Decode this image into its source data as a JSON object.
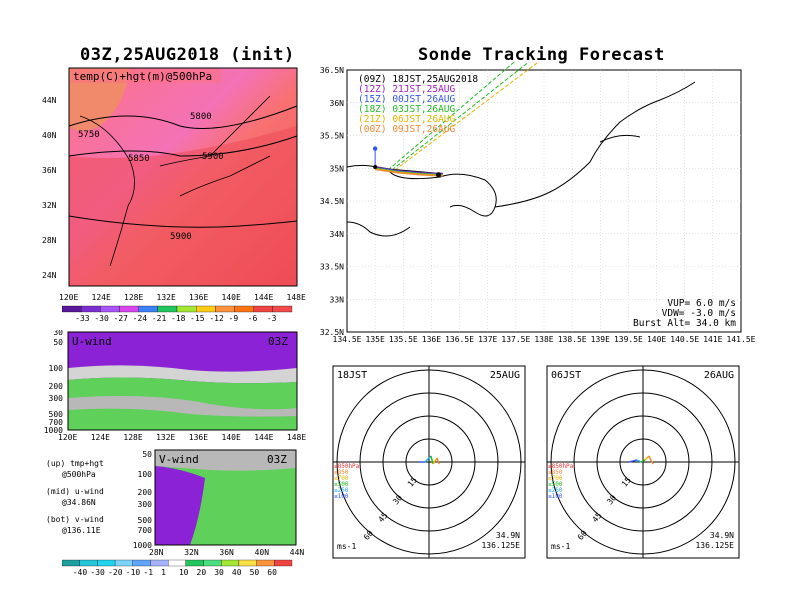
{
  "left_map": {
    "title": "03Z,25AUG2018 (init)",
    "inset_label": "temp(C)+hgt(m)@500hPa",
    "lat_labels": [
      "44N",
      "40N",
      "36N",
      "32N",
      "28N",
      "24N"
    ],
    "lon_labels": [
      "120E",
      "124E",
      "128E",
      "132E",
      "136E",
      "140E",
      "144E",
      "148E"
    ],
    "contours": [
      "5750",
      "5800",
      "5850",
      "5900",
      "5900"
    ],
    "colorbar_labels": [
      "-33",
      "-30",
      "-27",
      "-24",
      "-21",
      "-18",
      "-15",
      "-12",
      "-9",
      "-6",
      "-3"
    ],
    "colorbar_colors": [
      "#5a189a",
      "#7b2fd0",
      "#a855f7",
      "#d946ef",
      "#3b82f6",
      "#22c55e",
      "#a3e635",
      "#facc15",
      "#fb923c",
      "#f97316",
      "#ef4444",
      "#f04a4a"
    ]
  },
  "uwind": {
    "label": "U-wind",
    "time": "03Z",
    "lev_labels": [
      "30",
      "50",
      "100",
      "200",
      "300",
      "500",
      "700",
      "1000"
    ],
    "lon_labels": [
      "120E",
      "124E",
      "128E",
      "132E",
      "136E",
      "140E",
      "144E",
      "148E"
    ]
  },
  "vwind": {
    "label": "V-wind",
    "time": "03Z",
    "lev_labels": [
      "50",
      "100",
      "200",
      "300",
      "500",
      "700",
      "1000"
    ],
    "lat_labels": [
      "28N",
      "32N",
      "36N",
      "40N",
      "44N"
    ]
  },
  "legend_notes": [
    {
      "a": "(up) tmp+hgt",
      "b": "@500hPa"
    },
    {
      "a": "(mid) u-wind",
      "b": "@34.86N"
    },
    {
      "a": "(bot) v-wind",
      "b": "@136.11E"
    }
  ],
  "wind_colorbar": {
    "labels": [
      "-40",
      "-30",
      "-20",
      "-10",
      "-1",
      "1",
      "10",
      "20",
      "30",
      "40",
      "50",
      "60"
    ],
    "colors": [
      "#1e9ea0",
      "#26c6da",
      "#22d3ee",
      "#7dd3fc",
      "#60a5fa",
      "#a5b4fc",
      "#ffffff",
      "#22c55e",
      "#4ade80",
      "#a3e635",
      "#fde047",
      "#fb923c",
      "#ef4444"
    ]
  },
  "track_map": {
    "title": "Sonde Tracking Forecast",
    "lat_labels": [
      "36.5N",
      "36N",
      "35.5N",
      "35N",
      "34.5N",
      "34N",
      "33.5N",
      "33N",
      "32.5N"
    ],
    "lon_labels": [
      "134.5E",
      "135E",
      "135.5E",
      "136E",
      "136.5E",
      "137E",
      "137.5E",
      "138E",
      "138.5E",
      "139E",
      "139.5E",
      "140E",
      "140.5E",
      "141E",
      "141.5E"
    ],
    "legend": [
      {
        "text": "(09Z)  18JST,25AUG2018",
        "color": "#000000"
      },
      {
        "text": "(12Z)  21JST,25AUG",
        "color": "#a020c0"
      },
      {
        "text": "(15Z)  00JST,26AUG",
        "color": "#3355ee"
      },
      {
        "text": "(18Z)  03JST,26AUG",
        "color": "#22bb22"
      },
      {
        "text": "(21Z)  06JST,26AUG",
        "color": "#e6b400"
      },
      {
        "text": "(00Z)  09JST,26AUG",
        "color": "#ee8833"
      }
    ],
    "params": [
      "VUP=  6.0 m/s",
      "VDW= -3.0 m/s",
      "Burst Alt= 34.0 km"
    ]
  },
  "hodographs": [
    {
      "time": "18JST",
      "date": "25AUG",
      "ring_labels": [
        "15",
        "30",
        "45",
        "60"
      ],
      "unit": "ms-1",
      "lat": "34.9N",
      "lon": "136.125E"
    },
    {
      "time": "06JST",
      "date": "26AUG",
      "ring_labels": [
        "15",
        "30",
        "45",
        "60"
      ],
      "unit": "ms-1",
      "lat": "34.9N",
      "lon": "136.125E"
    }
  ],
  "hodo_levels": [
    {
      "text": "≥850hPa",
      "color": "#ee3333"
    },
    {
      "text": "≤850",
      "color": "#ee8833"
    },
    {
      "text": "≤700",
      "color": "#e6b400"
    },
    {
      "text": "≤500",
      "color": "#22bb22"
    },
    {
      "text": "≤250",
      "color": "#22aaee"
    },
    {
      "text": "≤100",
      "color": "#3355ee"
    }
  ],
  "chart_data": {
    "type": "scatter",
    "title": "Sonde Tracking Forecast",
    "xlim": [
      134.5,
      141.5
    ],
    "ylim": [
      32.5,
      36.5
    ],
    "launch": {
      "lat": 34.9,
      "lon": 136.125
    },
    "series": [
      {
        "name": "(09Z)  18JST,25AUG2018",
        "points": [
          [
            135.0,
            35.02
          ],
          [
            135.3,
            34.98
          ],
          [
            135.7,
            34.95
          ],
          [
            136.1,
            34.92
          ],
          [
            136.2,
            34.92
          ]
        ]
      },
      {
        "name": "(12Z)  21JST,25AUG",
        "points": [
          [
            135.0,
            35.02
          ],
          [
            135.4,
            34.97
          ],
          [
            135.8,
            34.94
          ],
          [
            136.2,
            34.92
          ]
        ]
      },
      {
        "name": "(15Z)  00JST,26AUG",
        "points": [
          [
            135.0,
            35.02
          ],
          [
            135.4,
            34.97
          ],
          [
            135.8,
            34.94
          ],
          [
            136.2,
            34.92
          ]
        ]
      },
      {
        "name": "(18Z)  03JST,26AUG",
        "points": [
          [
            135.0,
            35.02
          ],
          [
            135.4,
            34.97
          ],
          [
            135.8,
            34.94
          ],
          [
            136.2,
            34.92
          ]
        ]
      },
      {
        "name": "(21Z)  06JST,26AUG",
        "points": [
          [
            135.0,
            35.02
          ],
          [
            135.4,
            34.97
          ],
          [
            135.8,
            34.94
          ],
          [
            136.2,
            34.92
          ]
        ]
      },
      {
        "name": "(00Z)  09JST,26AUG",
        "points": [
          [
            135.0,
            35.02
          ],
          [
            135.4,
            34.97
          ],
          [
            135.8,
            34.94
          ],
          [
            136.2,
            34.92
          ]
        ]
      }
    ]
  }
}
